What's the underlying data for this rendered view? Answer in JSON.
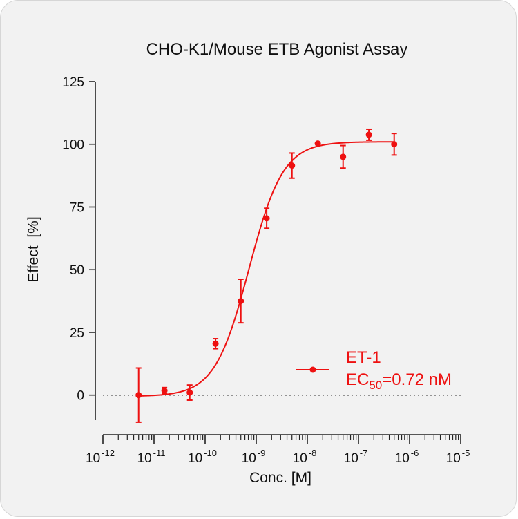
{
  "chart_data": {
    "type": "scatter",
    "title": "CHO-K1/Mouse ETB Agonist Assay",
    "xlabel": "Conc. [M]",
    "ylabel": "Effect  [%]",
    "x_scale": "log",
    "xlim": [
      1e-12,
      1e-05
    ],
    "ylim": [
      -10,
      125
    ],
    "y_ticks": [
      0,
      25,
      50,
      75,
      100,
      125
    ],
    "x_ticks": [
      {
        "value": 1e-12,
        "base": "10",
        "exp": "-12"
      },
      {
        "value": 1e-11,
        "base": "10",
        "exp": "-11"
      },
      {
        "value": 1e-10,
        "base": "10",
        "exp": "-10"
      },
      {
        "value": 1e-09,
        "base": "10",
        "exp": "-9"
      },
      {
        "value": 1e-08,
        "base": "10",
        "exp": "-8"
      },
      {
        "value": 1e-07,
        "base": "10",
        "exp": "-7"
      },
      {
        "value": 1e-06,
        "base": "10",
        "exp": "-6"
      },
      {
        "value": 1e-05,
        "base": "10",
        "exp": "-5"
      }
    ],
    "baseline": 0,
    "color": "#ee1111",
    "series": [
      {
        "name": "ET-1",
        "x": [
          5e-12,
          1.6e-11,
          5e-11,
          1.6e-10,
          5e-10,
          1.6e-09,
          5e-09,
          1.6e-08,
          5e-08,
          1.6e-07,
          5e-07
        ],
        "y": [
          0,
          1.8,
          1,
          20.5,
          37.5,
          70.5,
          91.5,
          100.3,
          95,
          103.8,
          100
        ],
        "error": [
          10.8,
          1.2,
          3,
          2,
          8.7,
          4,
          5,
          0,
          4.5,
          2.2,
          4.3
        ],
        "fit": {
          "model": "4PL",
          "bottom": -0.5,
          "top": 101,
          "ec50": 7.2e-10,
          "hill": 1.3
        }
      }
    ],
    "legend": {
      "position": "bottom-right",
      "name": "ET-1",
      "ec_prefix": "EC",
      "ec_sub": "50",
      "ec_value": "=0.72 nM"
    }
  }
}
